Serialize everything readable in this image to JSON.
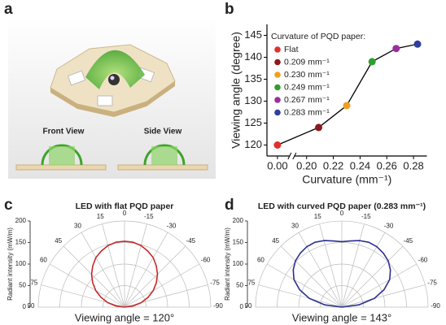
{
  "panel_labels": [
    "a",
    "b",
    "c",
    "d"
  ],
  "illustration": {
    "labels": [
      "Front View",
      "Side View"
    ]
  },
  "chart_data": [
    {
      "type": "line",
      "xlabel": "Curvature (mm⁻¹)",
      "ylabel": "Viewing angle (degree)",
      "x": [
        0,
        0.209,
        0.23,
        0.249,
        0.267,
        0.283
      ],
      "values": [
        120,
        124,
        129,
        139,
        142,
        143
      ],
      "color": "#000000",
      "legend_title": "Curvature of PQD paper:",
      "point_names": [
        "Flat",
        "0.209 mm⁻¹",
        "0.230 mm⁻¹",
        "0.249 mm⁻¹",
        "0.267 mm⁻¹",
        "0.283 mm⁻¹"
      ],
      "point_colors": [
        "#e0302a",
        "#8b1a1a",
        "#f0a020",
        "#2ca02c",
        "#9b2f9b",
        "#2f3f9f"
      ],
      "xlim": [
        -0.01,
        0.29
      ],
      "xbreak": [
        0.01,
        0.19
      ],
      "xticks": [
        {
          "value": 0,
          "label": "0.00"
        },
        {
          "value": 0.2,
          "label": "0.20"
        },
        {
          "value": 0.22,
          "label": "0.22"
        },
        {
          "value": 0.24,
          "label": "0.24"
        },
        {
          "value": 0.26,
          "label": "0.26"
        },
        {
          "value": 0.28,
          "label": "0.28"
        }
      ],
      "ylim": [
        117.5,
        147.5
      ],
      "yticks": [
        120,
        125,
        130,
        135,
        140,
        145
      ]
    },
    {
      "type": "polar",
      "title": "LED with flat PQD paper",
      "rlabel": "Radiant intensity (mW/m)",
      "annotation": "Viewing angle = 120°",
      "theta": [
        -90,
        -82.5,
        -75,
        -67.5,
        -60,
        -52.5,
        -45,
        -37.5,
        -30,
        -22.5,
        -15,
        -7.5,
        0,
        7.5,
        15,
        22.5,
        30,
        37.5,
        45,
        52.5,
        60,
        67.5,
        75,
        82.5,
        90
      ],
      "values": [
        0,
        20,
        40,
        59,
        77,
        93,
        108,
        121,
        133,
        141,
        148,
        152,
        153,
        152,
        148,
        141,
        133,
        121,
        108,
        93,
        77,
        59,
        40,
        20,
        0
      ],
      "color": "#c62828",
      "rlim": [
        0,
        200
      ],
      "rticks": [
        0,
        50,
        100,
        150,
        200
      ],
      "thetaticks": [
        90,
        75,
        60,
        45,
        30,
        15,
        0,
        -15,
        -30,
        -45,
        -60,
        -75,
        -90
      ]
    },
    {
      "type": "polar",
      "title": "LED with curved PQD paper (0.283 mm⁻¹)",
      "rlabel": "Radiant intensity (mW/m)",
      "annotation": "Viewing angle = 143°",
      "theta": [
        -90,
        -82.5,
        -75,
        -67.5,
        -60,
        -52.5,
        -45,
        -37.5,
        -30,
        -22.5,
        -15,
        -7.5,
        0,
        7.5,
        15,
        22.5,
        30,
        37.5,
        45,
        52.5,
        60,
        67.5,
        75,
        82.5,
        90
      ],
      "values": [
        0,
        40,
        78,
        106,
        128,
        142,
        152,
        158,
        162,
        163,
        160,
        155,
        152,
        155,
        160,
        163,
        162,
        158,
        152,
        142,
        128,
        106,
        78,
        40,
        0
      ],
      "color": "#2b2f8f",
      "rlim": [
        0,
        200
      ],
      "rticks": [
        0,
        50,
        100,
        150,
        200
      ],
      "thetaticks": [
        90,
        75,
        60,
        45,
        30,
        15,
        0,
        -15,
        -30,
        -45,
        -60,
        -75,
        -90
      ]
    }
  ]
}
